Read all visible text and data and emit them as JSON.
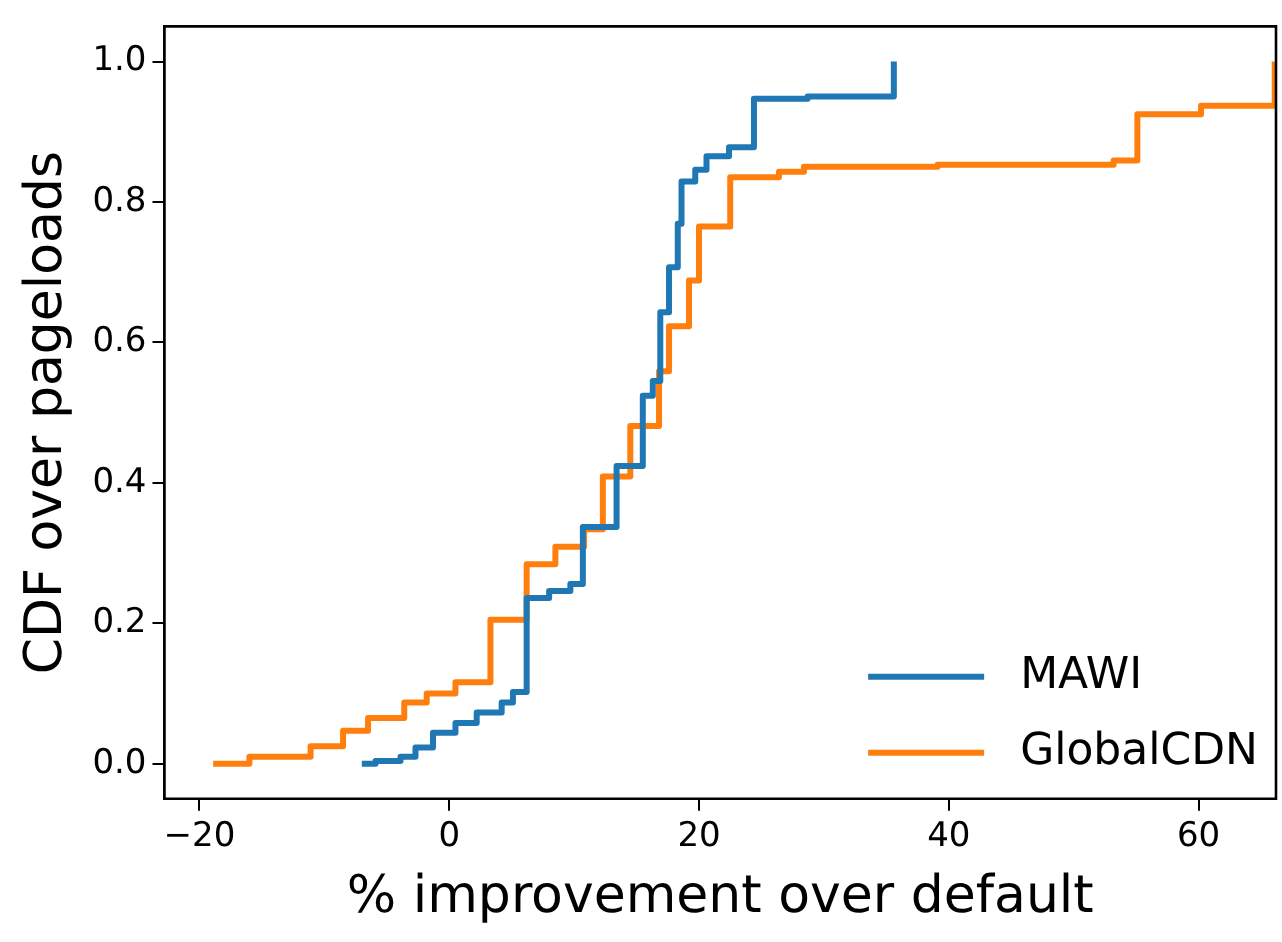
{
  "chart_data": {
    "type": "step",
    "xlabel": "% improvement over default",
    "ylabel": "CDF over pageloads",
    "xlim": [
      -22.8,
      66.2
    ],
    "xticks": [
      -20,
      0,
      20,
      40,
      60
    ],
    "ylim": [
      -0.05,
      1.05
    ],
    "yticks": [
      {
        "value": 0,
        "label": "0.0"
      },
      {
        "value": 0.2,
        "label": "0.2"
      },
      {
        "value": 0.4,
        "label": "0.4"
      },
      {
        "value": 0.6,
        "label": "0.6"
      },
      {
        "value": 0.8,
        "label": "0.8"
      },
      {
        "value": 1,
        "label": "1.0"
      }
    ],
    "grid": false,
    "legend": "bottom right",
    "marker": "none",
    "line_style": "solid",
    "series": [
      {
        "name": "MAWI",
        "color": "#1f77b4",
        "x": [
          -7.0,
          -5.9,
          -3.9,
          -2.7,
          -1.3,
          0.5,
          2.2,
          4.2,
          5.1,
          6.2,
          6.2,
          8.0,
          9.7,
          10.7,
          13.4,
          13.4,
          15.5,
          15.5,
          16.3,
          16.9,
          17.6,
          18.3,
          18.6,
          19.7,
          20.6,
          22.4,
          24.4,
          28.7,
          35.6
        ],
        "values": [
          0,
          0.004,
          0.01,
          0.023,
          0.044,
          0.058,
          0.073,
          0.087,
          0.102,
          0.109,
          0.236,
          0.246,
          0.256,
          0.337,
          0.352,
          0.424,
          0.452,
          0.524,
          0.545,
          0.643,
          0.707,
          0.769,
          0.829,
          0.846,
          0.865,
          0.878,
          0.947,
          0.95,
          1.0
        ]
      },
      {
        "name": "GlobalCDN",
        "color": "#ff7f0e",
        "x": [
          -18.9,
          -16.0,
          -11.1,
          -8.5,
          -6.5,
          -3.6,
          -1.8,
          0.5,
          3.3,
          3.3,
          6.2,
          6.2,
          8.5,
          10.8,
          12.3,
          14.5,
          14.5,
          16.8,
          16.8,
          17.6,
          19.2,
          20.0,
          22.5,
          26.4,
          28.4,
          39.1,
          53.2,
          55.1,
          60.2,
          66.1
        ],
        "values": [
          0,
          0.01,
          0.025,
          0.047,
          0.065,
          0.087,
          0.1,
          0.116,
          0.133,
          0.205,
          0.219,
          0.284,
          0.309,
          0.334,
          0.409,
          0.419,
          0.481,
          0.493,
          0.559,
          0.623,
          0.688,
          0.765,
          0.835,
          0.843,
          0.85,
          0.853,
          0.859,
          0.925,
          0.937,
          1.0
        ]
      }
    ]
  }
}
